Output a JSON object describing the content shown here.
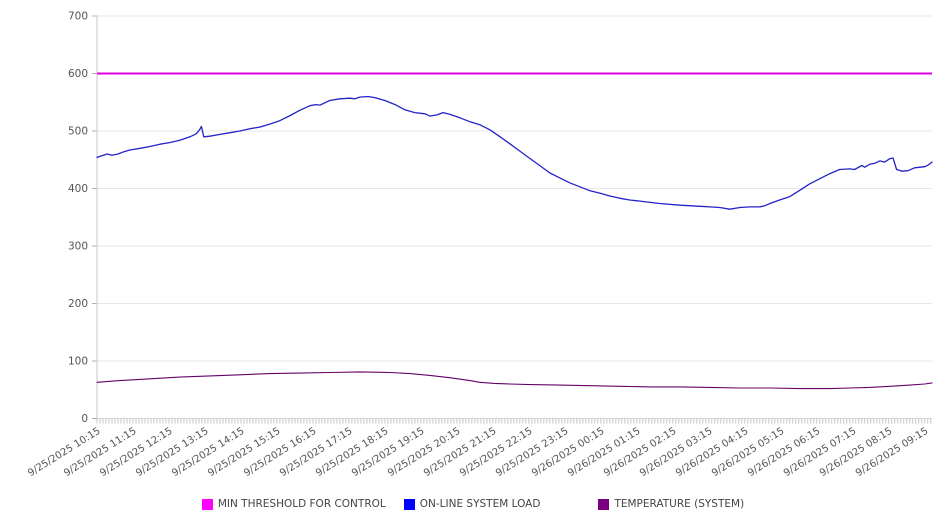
{
  "chart_data": {
    "type": "line",
    "title": "",
    "xlabel": "",
    "ylabel": "",
    "grid": true,
    "x_axis": {
      "total_minutes": 1392,
      "label_step_minutes": 60,
      "minor_tick_minutes": 5,
      "label_rotation_deg": -32,
      "labels": [
        "9/25/2025 10:15",
        "9/25/2025 11:15",
        "9/25/2025 12:15",
        "9/25/2025 13:15",
        "9/25/2025 14:15",
        "9/25/2025 15:15",
        "9/25/2025 16:15",
        "9/25/2025 17:15",
        "9/25/2025 18:15",
        "9/25/2025 19:15",
        "9/25/2025 20:15",
        "9/25/2025 21:15",
        "9/25/2025 22:15",
        "9/25/2025 23:15",
        "9/26/2025 00:15",
        "9/26/2025 01:15",
        "9/26/2025 02:15",
        "9/26/2025 03:15",
        "9/26/2025 04:15",
        "9/26/2025 05:15",
        "9/26/2025 06:15",
        "9/26/2025 07:15",
        "9/26/2025 08:15",
        "9/26/2025 09:15"
      ]
    },
    "y_axis": {
      "min": 0,
      "max": 700,
      "tick_step": 100,
      "ticks": [
        0,
        100,
        200,
        300,
        400,
        500,
        600,
        700
      ]
    },
    "series": [
      {
        "name": "MIN THRESHOLD FOR CONTROL",
        "kind": "threshold",
        "value": 600,
        "color": "#e000e0",
        "width": 2
      },
      {
        "name": "ON-LINE SYSTEM LOAD",
        "kind": "line",
        "color": "#2323c8",
        "width": 1.3,
        "points": [
          [
            0,
            454
          ],
          [
            8,
            457
          ],
          [
            17,
            460
          ],
          [
            25,
            458
          ],
          [
            35,
            460
          ],
          [
            45,
            464
          ],
          [
            55,
            467
          ],
          [
            72,
            470
          ],
          [
            88,
            473
          ],
          [
            105,
            477
          ],
          [
            122,
            480
          ],
          [
            138,
            484
          ],
          [
            155,
            490
          ],
          [
            165,
            495
          ],
          [
            171,
            502
          ],
          [
            174,
            508
          ],
          [
            178,
            490
          ],
          [
            188,
            491
          ],
          [
            205,
            494
          ],
          [
            222,
            497
          ],
          [
            238,
            500
          ],
          [
            255,
            504
          ],
          [
            272,
            507
          ],
          [
            288,
            512
          ],
          [
            305,
            518
          ],
          [
            322,
            527
          ],
          [
            338,
            536
          ],
          [
            355,
            544
          ],
          [
            365,
            546
          ],
          [
            372,
            545
          ],
          [
            388,
            553
          ],
          [
            405,
            556
          ],
          [
            422,
            557
          ],
          [
            430,
            556
          ],
          [
            438,
            559
          ],
          [
            452,
            560
          ],
          [
            463,
            558
          ],
          [
            480,
            553
          ],
          [
            497,
            546
          ],
          [
            513,
            537
          ],
          [
            530,
            532
          ],
          [
            547,
            530
          ],
          [
            555,
            526
          ],
          [
            567,
            528
          ],
          [
            577,
            532
          ],
          [
            588,
            529
          ],
          [
            605,
            523
          ],
          [
            622,
            516
          ],
          [
            638,
            511
          ],
          [
            655,
            502
          ],
          [
            672,
            490
          ],
          [
            688,
            478
          ],
          [
            705,
            465
          ],
          [
            722,
            452
          ],
          [
            738,
            440
          ],
          [
            755,
            427
          ],
          [
            772,
            418
          ],
          [
            788,
            410
          ],
          [
            805,
            403
          ],
          [
            822,
            396
          ],
          [
            838,
            392
          ],
          [
            855,
            387
          ],
          [
            872,
            383
          ],
          [
            888,
            380
          ],
          [
            905,
            378
          ],
          [
            938,
            374
          ],
          [
            972,
            371
          ],
          [
            1005,
            369
          ],
          [
            1022,
            368
          ],
          [
            1038,
            367
          ],
          [
            1055,
            364
          ],
          [
            1072,
            367
          ],
          [
            1088,
            368
          ],
          [
            1105,
            368
          ],
          [
            1113,
            370
          ],
          [
            1122,
            374
          ],
          [
            1138,
            380
          ],
          [
            1155,
            386
          ],
          [
            1172,
            397
          ],
          [
            1188,
            408
          ],
          [
            1205,
            417
          ],
          [
            1222,
            426
          ],
          [
            1238,
            433
          ],
          [
            1255,
            434
          ],
          [
            1263,
            433
          ],
          [
            1275,
            440
          ],
          [
            1280,
            437
          ],
          [
            1288,
            442
          ],
          [
            1297,
            444
          ],
          [
            1305,
            448
          ],
          [
            1313,
            446
          ],
          [
            1322,
            452
          ],
          [
            1327,
            453
          ],
          [
            1333,
            433
          ],
          [
            1342,
            430
          ],
          [
            1352,
            431
          ],
          [
            1363,
            436
          ],
          [
            1380,
            438
          ],
          [
            1386,
            441
          ],
          [
            1392,
            446
          ]
        ]
      },
      {
        "name": "TEMPERATURE (SYSTEM)",
        "kind": "line",
        "color": "#660066",
        "width": 1.1,
        "points": [
          [
            0,
            63
          ],
          [
            38,
            66
          ],
          [
            88,
            69
          ],
          [
            138,
            72
          ],
          [
            188,
            74
          ],
          [
            238,
            76
          ],
          [
            288,
            78
          ],
          [
            338,
            79
          ],
          [
            388,
            80
          ],
          [
            438,
            81
          ],
          [
            488,
            80
          ],
          [
            522,
            78
          ],
          [
            555,
            75
          ],
          [
            588,
            71
          ],
          [
            622,
            66
          ],
          [
            638,
            63
          ],
          [
            663,
            61
          ],
          [
            688,
            60
          ],
          [
            722,
            59
          ],
          [
            772,
            58
          ],
          [
            822,
            57
          ],
          [
            872,
            56
          ],
          [
            922,
            55
          ],
          [
            972,
            55
          ],
          [
            1022,
            54
          ],
          [
            1072,
            53
          ],
          [
            1122,
            53
          ],
          [
            1172,
            52
          ],
          [
            1222,
            52
          ],
          [
            1255,
            53
          ],
          [
            1288,
            54
          ],
          [
            1322,
            56
          ],
          [
            1355,
            58
          ],
          [
            1380,
            60
          ],
          [
            1392,
            62
          ]
        ]
      }
    ],
    "legend": {
      "position": "bottom",
      "entries": [
        {
          "label": "MIN THRESHOLD FOR CONTROL",
          "swatch_color": "#ff00ff"
        },
        {
          "label": "ON-LINE SYSTEM LOAD",
          "swatch_color": "#0000ff"
        },
        {
          "label": "TEMPERATURE (SYSTEM)",
          "swatch_color": "#7a0080"
        }
      ]
    },
    "style": {
      "grid_color": "#e7e7e7",
      "baseline_color": "#d4d4d4",
      "axis_color": "#c9c9c9",
      "tick_color": "#b0b0b0",
      "minor_tick_color": "#b3a8b3",
      "label_color": "#555555"
    }
  }
}
